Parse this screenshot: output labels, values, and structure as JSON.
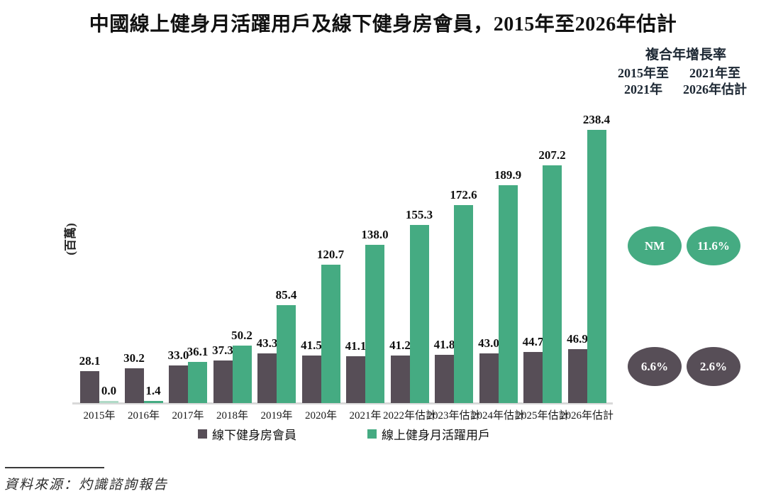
{
  "title": "中國線上健身月活躍用戶及線下健身房會員，2015年至2026年估計",
  "cagr_panel": {
    "header": "複合年增長率",
    "col1_line1": "2015年至",
    "col1_line2": "2021年",
    "col2_line1": "2021年至",
    "col2_line2": "2026年估計",
    "online_2015_2021": "NM",
    "online_2021_2026": "11.6%",
    "offline_2015_2021": "6.6%",
    "offline_2021_2026": "2.6%"
  },
  "chart_data": {
    "type": "bar",
    "title": "中國線上健身月活躍用戶及線下健身房會員，2015年至2026年估計",
    "ylabel": "(百萬)",
    "xlabel": "",
    "ylim": [
      0,
      250
    ],
    "grid": false,
    "legend_position": "bottom",
    "value_labels": true,
    "categories": [
      "2015年",
      "2016年",
      "2017年",
      "2018年",
      "2019年",
      "2020年",
      "2021年",
      "2022年估計",
      "2023年估計",
      "2024年估計",
      "2025年估計",
      "2026年估計"
    ],
    "series": [
      {
        "name": "線下健身房會員",
        "color": "#574e57",
        "values": [
          28.1,
          30.2,
          33.0,
          37.3,
          43.3,
          41.5,
          41.1,
          41.2,
          41.8,
          43.0,
          44.7,
          46.9
        ]
      },
      {
        "name": "線上健身月活躍用戶",
        "color": "#45ab82",
        "zero_bar_color": "#b0dac7",
        "values": [
          0.0,
          1.4,
          36.1,
          50.2,
          85.4,
          120.7,
          138.0,
          155.3,
          172.6,
          189.9,
          207.2,
          238.4
        ]
      }
    ]
  },
  "source": "資料來源：灼識諮詢報告",
  "colors": {
    "offline": "#574e57",
    "online": "#45ab82",
    "axis_line": "#d9d9d9"
  }
}
